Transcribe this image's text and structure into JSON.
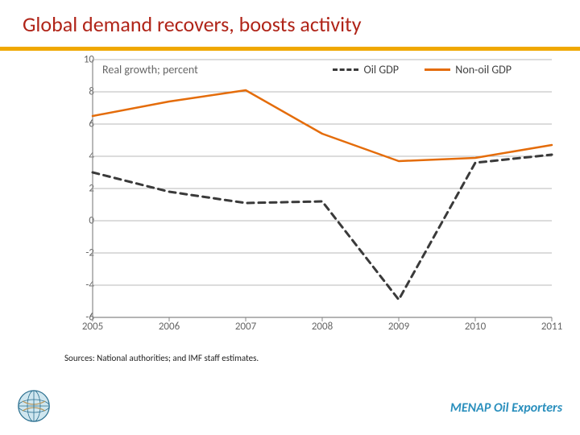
{
  "title": "Global demand recovers, boosts activity",
  "title_color": "#b02418",
  "title_rule_color": "#f0a800",
  "chart": {
    "type": "line",
    "axis_caption": "Real growth; percent",
    "label_fontsize": 14,
    "tick_fontsize": 13,
    "tick_color": "#666666",
    "background_color": "#ffffff",
    "grid_color": "#b8b8b8",
    "axis_line_color": "#888888",
    "x": {
      "min": 2005,
      "max": 2011,
      "ticks": [
        2005,
        2006,
        2007,
        2008,
        2009,
        2010,
        2011
      ]
    },
    "y": {
      "min": -6,
      "max": 10,
      "ticks": [
        -6,
        -4,
        -2,
        0,
        2,
        4,
        6,
        8,
        10
      ]
    },
    "legend": {
      "items": [
        {
          "key": "oil",
          "label": "Oil GDP"
        },
        {
          "key": "nonoil",
          "label": "Non-oil GDP"
        }
      ],
      "position": "top-right"
    },
    "series": {
      "oil": {
        "label": "Oil GDP",
        "color": "#3a3a3a",
        "line_width": 3,
        "dash": "8 6",
        "x": [
          2005,
          2006,
          2007,
          2008,
          2009,
          2010,
          2011
        ],
        "y": [
          3.0,
          1.8,
          1.1,
          1.2,
          -4.9,
          3.6,
          4.1
        ]
      },
      "nonoil": {
        "label": "Non-oil GDP",
        "color": "#e46c0a",
        "line_width": 2.5,
        "dash": "",
        "x": [
          2005,
          2006,
          2007,
          2008,
          2009,
          2010,
          2011
        ],
        "y": [
          6.5,
          7.4,
          8.1,
          5.4,
          3.7,
          3.9,
          4.7
        ]
      }
    }
  },
  "sources": "Sources: National authorities; and IMF staff estimates.",
  "footer_right": "MENAP Oil Exporters",
  "footer_right_color": "#2a8fbd",
  "logo_alt": "IMF logo"
}
